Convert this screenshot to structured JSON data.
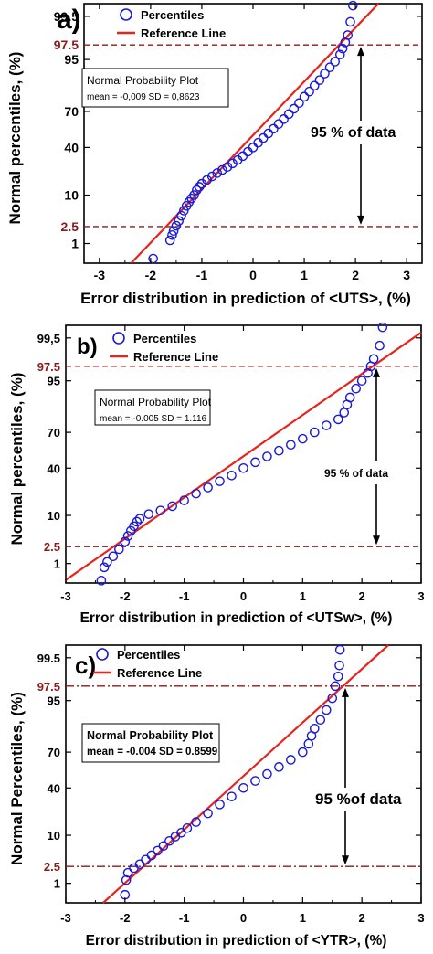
{
  "colors": {
    "points": "#1a1ad6",
    "reference_line": "#e8231c",
    "dashed_line": "#8b1a1a",
    "frame": "#000000"
  },
  "chart_data": [
    {
      "type": "scatter",
      "panel_label": "a)",
      "xlabel": "Error distribution in prediction of <UTS>, (%)",
      "ylabel": "Normal percentiles, (%)",
      "xlim": [
        -3.3,
        3.3
      ],
      "x_ticks": [
        "-3",
        "-2",
        "-1",
        "0",
        "1",
        "2",
        "3"
      ],
      "y_ticks": [
        "1",
        "10",
        "40",
        "70",
        "95",
        "99.5"
      ],
      "marked_ticks": [
        "2.5",
        "97.5"
      ],
      "legend": {
        "points": "Percentiles",
        "line": "Reference Line",
        "placement": "top-center"
      },
      "box": {
        "title": "Normal Probability Plot",
        "stats": "mean = -0,009  SD = 0,8623"
      },
      "annotation": "95 % of data",
      "mean": -0.009,
      "sd": 0.8623,
      "guide_percentiles": [
        2.5,
        97.5
      ],
      "series": [
        {
          "name": "Percentiles",
          "style": "open-circle",
          "points": [
            [
              -1.95,
              0.4
            ],
            [
              -1.62,
              1.2
            ],
            [
              -1.58,
              1.6
            ],
            [
              -1.55,
              2.0
            ],
            [
              -1.5,
              2.6
            ],
            [
              -1.45,
              3.3
            ],
            [
              -1.4,
              4.2
            ],
            [
              -1.35,
              5.3
            ],
            [
              -1.3,
              6.5
            ],
            [
              -1.25,
              7.6
            ],
            [
              -1.2,
              8.8
            ],
            [
              -1.15,
              10
            ],
            [
              -1.1,
              12
            ],
            [
              -1.05,
              13.5
            ],
            [
              -1.0,
              15
            ],
            [
              -0.9,
              17
            ],
            [
              -0.8,
              19
            ],
            [
              -0.7,
              21
            ],
            [
              -0.6,
              23
            ],
            [
              -0.5,
              25
            ],
            [
              -0.4,
              27.5
            ],
            [
              -0.3,
              30
            ],
            [
              -0.2,
              33
            ],
            [
              -0.1,
              36.5
            ],
            [
              0.0,
              40
            ],
            [
              0.1,
              44
            ],
            [
              0.2,
              48
            ],
            [
              0.3,
              52
            ],
            [
              0.4,
              56
            ],
            [
              0.5,
              60
            ],
            [
              0.6,
              64
            ],
            [
              0.7,
              68
            ],
            [
              0.8,
              72
            ],
            [
              0.9,
              76
            ],
            [
              1.0,
              80
            ],
            [
              1.1,
              83
            ],
            [
              1.2,
              86
            ],
            [
              1.3,
              88.5
            ],
            [
              1.4,
              91
            ],
            [
              1.5,
              93
            ],
            [
              1.6,
              94.5
            ],
            [
              1.7,
              96
            ],
            [
              1.75,
              97
            ],
            [
              1.8,
              97.8
            ],
            [
              1.85,
              98.5
            ],
            [
              1.9,
              99.3
            ],
            [
              1.95,
              99.75
            ]
          ]
        }
      ]
    },
    {
      "type": "scatter",
      "panel_label": "b)",
      "xlabel": "Error distribution in prediction of <UTSw>, (%)",
      "ylabel": "Normal percentiles, (%)",
      "xlim": [
        -3,
        3
      ],
      "x_ticks": [
        "-3",
        "-2",
        "-1",
        "0",
        "1",
        "2",
        "3"
      ],
      "y_ticks": [
        "1",
        "10",
        "40",
        "70",
        "95",
        "99,5"
      ],
      "marked_ticks": [
        "2.5",
        "97.5"
      ],
      "legend": {
        "points": "Percentiles",
        "line": "Reference Line",
        "placement": "top-center"
      },
      "box": {
        "title": "Normal Probability Plot",
        "stats": "mean = -0.005  SD = 1.116"
      },
      "annotation": "95 % of data",
      "mean": -0.005,
      "sd": 1.116,
      "guide_percentiles": [
        2.5,
        97.5
      ],
      "series": [
        {
          "name": "Percentiles",
          "style": "open-circle",
          "points": [
            [
              -2.4,
              0.35
            ],
            [
              -2.35,
              0.8
            ],
            [
              -2.3,
              1.1
            ],
            [
              -2.2,
              1.5
            ],
            [
              -2.1,
              2.2
            ],
            [
              -2.0,
              3.2
            ],
            [
              -1.95,
              4.2
            ],
            [
              -1.9,
              5.3
            ],
            [
              -1.85,
              6.5
            ],
            [
              -1.8,
              7.8
            ],
            [
              -1.75,
              8.8
            ],
            [
              -1.6,
              10.5
            ],
            [
              -1.4,
              12
            ],
            [
              -1.2,
              14
            ],
            [
              -1.0,
              17
            ],
            [
              -0.8,
              21
            ],
            [
              -0.6,
              25
            ],
            [
              -0.4,
              29.5
            ],
            [
              -0.2,
              34
            ],
            [
              0.0,
              40
            ],
            [
              0.2,
              45
            ],
            [
              0.4,
              50
            ],
            [
              0.6,
              55
            ],
            [
              0.8,
              60
            ],
            [
              1.0,
              65
            ],
            [
              1.2,
              70
            ],
            [
              1.4,
              75
            ],
            [
              1.6,
              79
            ],
            [
              1.7,
              83
            ],
            [
              1.75,
              87
            ],
            [
              1.8,
              90
            ],
            [
              1.9,
              93
            ],
            [
              2.0,
              95
            ],
            [
              2.1,
              96.5
            ],
            [
              2.15,
              97.5
            ],
            [
              2.2,
              98.3
            ],
            [
              2.3,
              99.2
            ],
            [
              2.35,
              99.75
            ]
          ]
        }
      ]
    },
    {
      "type": "scatter",
      "panel_label": "c)",
      "xlabel": "Error distribution in prediction of  <YTR>, (%)",
      "ylabel": "Normal Percentiles, (%)",
      "xlim": [
        -3,
        3
      ],
      "x_ticks": [
        "-3",
        "-2",
        "-1",
        "0",
        "1",
        "2",
        "3"
      ],
      "y_ticks": [
        "1",
        "10",
        "40",
        "70",
        "95",
        "99.5"
      ],
      "marked_ticks": [
        "2.5",
        "97.5"
      ],
      "legend": {
        "points": "Percentiles",
        "line": "Reference Line",
        "placement": "top-center"
      },
      "box": {
        "title": "Normal Probability Plot",
        "stats": "mean = -0.004  SD = 0.8599"
      },
      "annotation": "95 %of data",
      "mean": -0.004,
      "sd": 0.8599,
      "guide_percentiles": [
        2.5,
        97.5
      ],
      "series": [
        {
          "name": "Percentiles",
          "style": "open-circle",
          "points": [
            [
              -2.0,
              0.5
            ],
            [
              -1.98,
              1.2
            ],
            [
              -1.95,
              1.8
            ],
            [
              -1.85,
              2.3
            ],
            [
              -1.75,
              2.8
            ],
            [
              -1.65,
              3.5
            ],
            [
              -1.55,
              4.3
            ],
            [
              -1.45,
              5.3
            ],
            [
              -1.35,
              6.5
            ],
            [
              -1.25,
              8
            ],
            [
              -1.15,
              9.5
            ],
            [
              -1.05,
              11
            ],
            [
              -0.95,
              13
            ],
            [
              -0.8,
              16
            ],
            [
              -0.6,
              21
            ],
            [
              -0.4,
              27
            ],
            [
              -0.2,
              33
            ],
            [
              0.0,
              40
            ],
            [
              0.2,
              46
            ],
            [
              0.4,
              52
            ],
            [
              0.6,
              58
            ],
            [
              0.8,
              64
            ],
            [
              1.0,
              70
            ],
            [
              1.1,
              76
            ],
            [
              1.15,
              81
            ],
            [
              1.2,
              85
            ],
            [
              1.3,
              89
            ],
            [
              1.4,
              92.5
            ],
            [
              1.5,
              95.5
            ],
            [
              1.55,
              97.5
            ],
            [
              1.6,
              98.5
            ],
            [
              1.62,
              99.2
            ],
            [
              1.63,
              99.7
            ]
          ]
        }
      ]
    }
  ]
}
